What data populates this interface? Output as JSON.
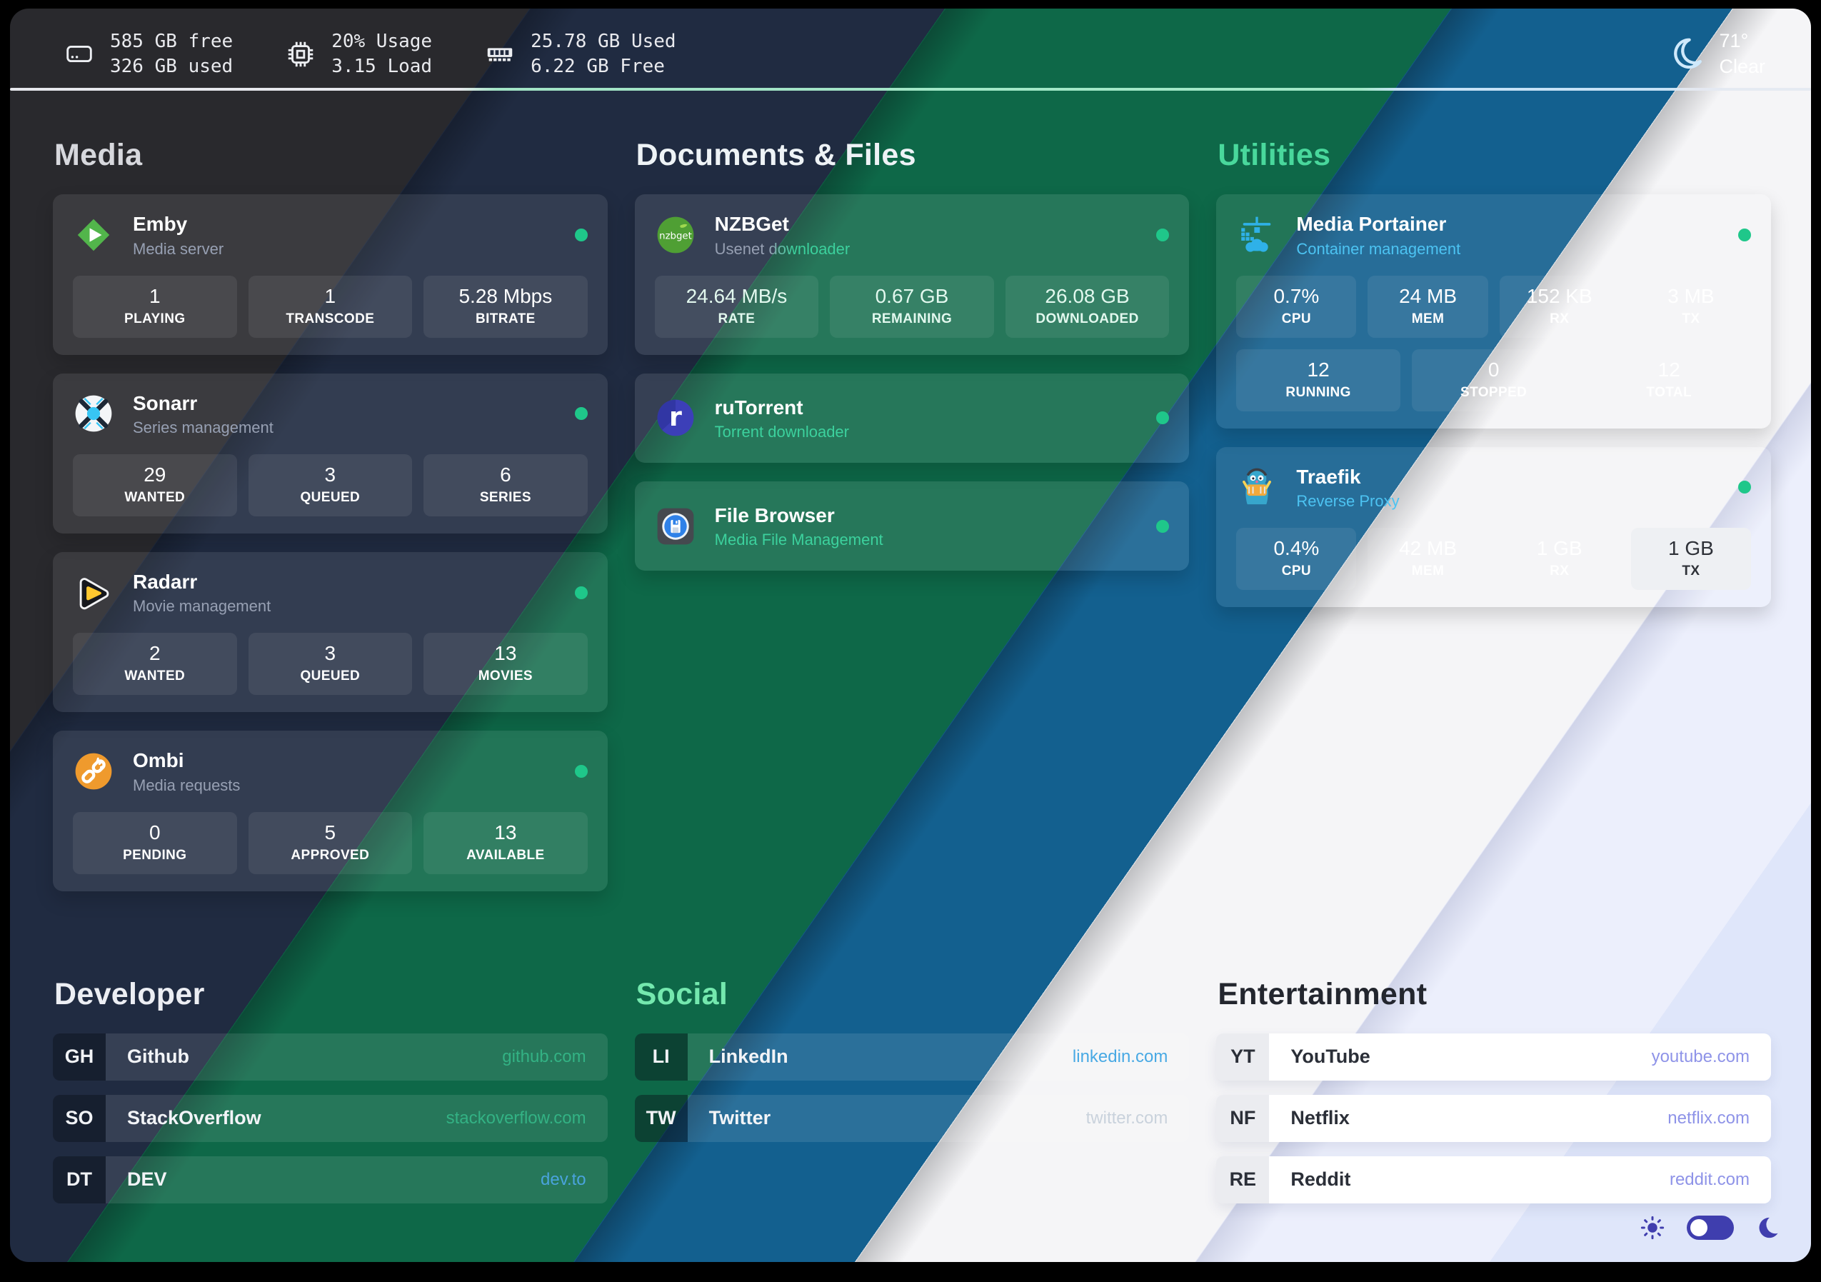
{
  "topbar": {
    "disk": {
      "icon": "hdd-icon",
      "line1": "585 GB free",
      "line2": "326 GB used"
    },
    "cpu": {
      "icon": "cpu-icon",
      "line1": "20% Usage",
      "line2": "3.15 Load"
    },
    "ram": {
      "icon": "ram-icon",
      "line1": "25.78 GB Used",
      "line2": "6.22 GB Free"
    },
    "weather": {
      "icon": "weather-moon-icon",
      "temperature": "71°",
      "condition": "Clear"
    }
  },
  "app_sections": [
    {
      "key": "media",
      "title": "Media",
      "apps": [
        {
          "key": "emby",
          "icon": "emby-icon",
          "name": "Emby",
          "description": "Media server",
          "online": true,
          "stats": [
            {
              "value": "1",
              "label": "PLAYING"
            },
            {
              "value": "1",
              "label": "TRANSCODE"
            },
            {
              "value": "5.28 Mbps",
              "label": "BITRATE"
            }
          ]
        },
        {
          "key": "sonarr",
          "icon": "sonarr-icon",
          "name": "Sonarr",
          "description": "Series management",
          "online": true,
          "stats": [
            {
              "value": "29",
              "label": "WANTED"
            },
            {
              "value": "3",
              "label": "QUEUED"
            },
            {
              "value": "6",
              "label": "SERIES"
            }
          ]
        },
        {
          "key": "radarr",
          "icon": "radarr-icon",
          "name": "Radarr",
          "description": "Movie management",
          "online": true,
          "stats": [
            {
              "value": "2",
              "label": "WANTED"
            },
            {
              "value": "3",
              "label": "QUEUED"
            },
            {
              "value": "13",
              "label": "MOVIES"
            }
          ]
        },
        {
          "key": "ombi",
          "icon": "ombi-icon",
          "name": "Ombi",
          "description": "Media requests",
          "online": true,
          "stats": [
            {
              "value": "0",
              "label": "PENDING"
            },
            {
              "value": "5",
              "label": "APPROVED"
            },
            {
              "value": "13",
              "label": "AVAILABLE"
            }
          ]
        }
      ]
    },
    {
      "key": "documents",
      "title": "Documents & Files",
      "apps": [
        {
          "key": "nzbget",
          "icon": "nzbget-icon",
          "name": "NZBGet",
          "description": "Usenet downloader",
          "online": true,
          "stats": [
            {
              "value": "24.64 MB/s",
              "label": "RATE"
            },
            {
              "value": "0.67 GB",
              "label": "REMAINING"
            },
            {
              "value": "26.08 GB",
              "label": "DOWNLOADED"
            }
          ]
        },
        {
          "key": "rutorrent",
          "icon": "rutorrent-icon",
          "name": "ruTorrent",
          "description": "Torrent downloader",
          "online": true,
          "stats": []
        },
        {
          "key": "filebrowser",
          "icon": "filebrowser-icon",
          "name": "File Browser",
          "description": "Media File Management",
          "online": true,
          "stats": []
        }
      ]
    },
    {
      "key": "utilities",
      "title": "Utilities",
      "apps": [
        {
          "key": "portainer",
          "icon": "portainer-icon",
          "name": "Media Portainer",
          "description": "Container management",
          "online": true,
          "stats": [
            {
              "value": "0.7%",
              "label": "CPU"
            },
            {
              "value": "24 MB",
              "label": "MEM"
            },
            {
              "value": "152 KB",
              "label": "RX"
            },
            {
              "value": "3 MB",
              "label": "TX"
            }
          ],
          "stats2": [
            {
              "value": "12",
              "label": "RUNNING"
            },
            {
              "value": "0",
              "label": "STOPPED"
            },
            {
              "value": "12",
              "label": "TOTAL"
            }
          ]
        },
        {
          "key": "traefik",
          "icon": "traefik-icon",
          "name": "Traefik",
          "description": "Reverse Proxy",
          "online": true,
          "stats": [
            {
              "value": "0.4%",
              "label": "CPU"
            },
            {
              "value": "42 MB",
              "label": "MEM"
            },
            {
              "value": "1 GB",
              "label": "RX"
            },
            {
              "value": "1 GB",
              "label": "TX"
            }
          ]
        }
      ]
    }
  ],
  "bookmark_sections": [
    {
      "key": "developer",
      "title": "Developer",
      "items": [
        {
          "abbr": "GH",
          "name": "Github",
          "domain": "github.com"
        },
        {
          "abbr": "SO",
          "name": "StackOverflow",
          "domain": "stackoverflow.com"
        },
        {
          "abbr": "DT",
          "name": "DEV",
          "domain": "dev.to"
        }
      ]
    },
    {
      "key": "social",
      "title": "Social",
      "items": [
        {
          "abbr": "LI",
          "name": "LinkedIn",
          "domain": "linkedin.com"
        },
        {
          "abbr": "TW",
          "name": "Twitter",
          "domain": "twitter.com"
        }
      ]
    },
    {
      "key": "entertainment",
      "title": "Entertainment",
      "items": [
        {
          "abbr": "YT",
          "name": "YouTube",
          "domain": "youtube.com"
        },
        {
          "abbr": "NF",
          "name": "Netflix",
          "domain": "netflix.com"
        },
        {
          "abbr": "RE",
          "name": "Reddit",
          "domain": "reddit.com"
        }
      ]
    }
  ],
  "theme_controls": {
    "light_icon": "sun-icon",
    "dark_icon": "moon-icon"
  },
  "colors": {
    "status_online": "#1fc78a",
    "band_charcoal": "#29292d",
    "band_navy": "#202b41",
    "band_green": "#0e6848",
    "band_blue": "#13608f",
    "band_white": "#f5f5f7",
    "band_lavender": "#dfe6fa",
    "accent_mint": "#3cd19d",
    "accent_lightblue": "#4cc3f2",
    "accent_indigo": "#3f3eae",
    "accent_purple": "#8e93e8"
  }
}
